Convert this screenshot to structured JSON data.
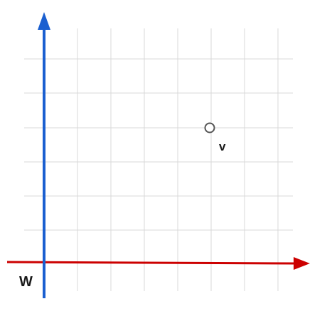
{
  "labels": {
    "origin": "W",
    "point": "v"
  },
  "colors": {
    "x_axis": "#cc0000",
    "y_axis": "#1a5fd0",
    "grid": "#d9d9d9",
    "point_stroke": "#555555",
    "text": "#1a1a1a"
  },
  "point": {
    "x": 5,
    "y": 4
  }
}
